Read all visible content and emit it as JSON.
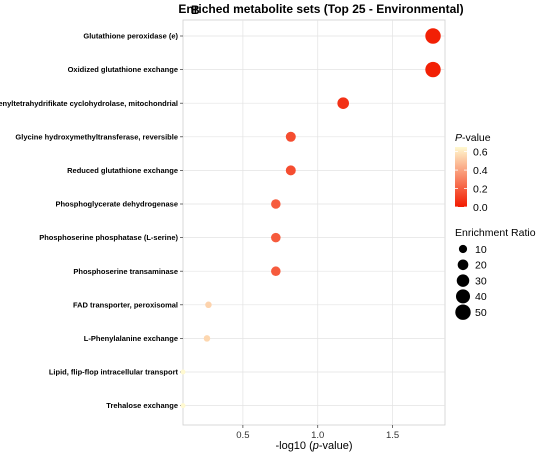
{
  "panel_letter": "B",
  "chart_data": {
    "type": "scatter",
    "title": "Enriched metabolite sets (Top 25 - Environmental)",
    "xlabel_prefix": "-log10 (",
    "xlabel_italic": "p",
    "xlabel_suffix": "-value)",
    "xlim": [
      0.1,
      1.85
    ],
    "xticks": [
      0.5,
      1.0,
      1.5
    ],
    "xtick_labels": [
      "0.5",
      "1.0",
      "1.5"
    ],
    "grid": true,
    "categories": [
      "Glutathione peroxidase (e)",
      "Oxidized glutathione exchange",
      "Methenyltetrahydrifikate cyclohydrolase, mitochondrial",
      "Glycine hydroxymethyltransferase, reversible",
      "Reduced glutathione exchange",
      "Phosphoglycerate dehydrogenase",
      "Phosphoserine phosphatase (L-serine)",
      "Phosphoserine transaminase",
      "FAD transporter, peroxisomal",
      "L-Phenylalanine exchange",
      "Lipid, flip-flop intracellular transport",
      "Trehalose exchange"
    ],
    "x": [
      1.77,
      1.77,
      1.17,
      0.82,
      0.82,
      0.72,
      0.72,
      0.72,
      0.27,
      0.26,
      0.1,
      0.1
    ],
    "p_value": [
      0.017,
      0.017,
      0.068,
      0.15,
      0.15,
      0.19,
      0.19,
      0.19,
      0.54,
      0.55,
      0.79,
      0.79
    ],
    "enrichment_ratio": [
      50,
      50,
      25,
      17,
      17,
      15,
      15,
      15,
      5,
      5,
      2,
      2
    ],
    "color_legend": {
      "title_italic": "P",
      "title_suffix": "-value",
      "ticks": [
        0.0,
        0.2,
        0.4,
        0.6
      ],
      "tick_labels": [
        "0.0",
        "0.2",
        "0.4",
        "0.6"
      ],
      "range": [
        0.0,
        0.65
      ],
      "low_color": "#f21a00",
      "high_color": "#fff9d0"
    },
    "size_legend": {
      "title": "Enrichment Ratio",
      "values": [
        10,
        20,
        30,
        40,
        50
      ],
      "labels": [
        "10",
        "20",
        "30",
        "40",
        "50"
      ]
    },
    "legend_position": "right"
  }
}
